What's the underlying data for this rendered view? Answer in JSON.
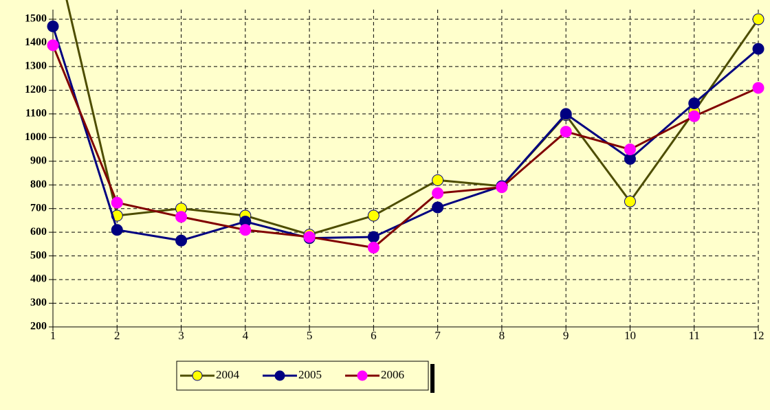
{
  "chart_data": {
    "type": "line",
    "x": [
      1,
      2,
      3,
      4,
      5,
      6,
      7,
      8,
      9,
      10,
      11,
      12
    ],
    "xlim": [
      1,
      12
    ],
    "xticks": [
      1,
      2,
      3,
      4,
      5,
      6,
      7,
      8,
      9,
      10,
      11,
      12
    ],
    "ylim": [
      200,
      1500
    ],
    "yticks": [
      200,
      300,
      400,
      500,
      600,
      700,
      800,
      900,
      1000,
      1100,
      1200,
      1300,
      1400,
      1500
    ],
    "grid": true,
    "legend": "bottom",
    "series": [
      {
        "name": "2004",
        "color": "#4d4d00",
        "marker_color": "#ffff00",
        "values": [
          1830,
          670,
          700,
          670,
          590,
          670,
          820,
          795,
          1095,
          730,
          1110,
          1500
        ]
      },
      {
        "name": "2005",
        "color": "#000080",
        "marker_color": "#000080",
        "values": [
          1470,
          610,
          565,
          645,
          575,
          580,
          705,
          795,
          1100,
          910,
          1145,
          1375
        ]
      },
      {
        "name": "2006",
        "color": "#800000",
        "marker_color": "#ff00ff",
        "values": [
          1390,
          725,
          665,
          610,
          580,
          535,
          765,
          790,
          1025,
          950,
          1090,
          1210
        ]
      }
    ]
  }
}
